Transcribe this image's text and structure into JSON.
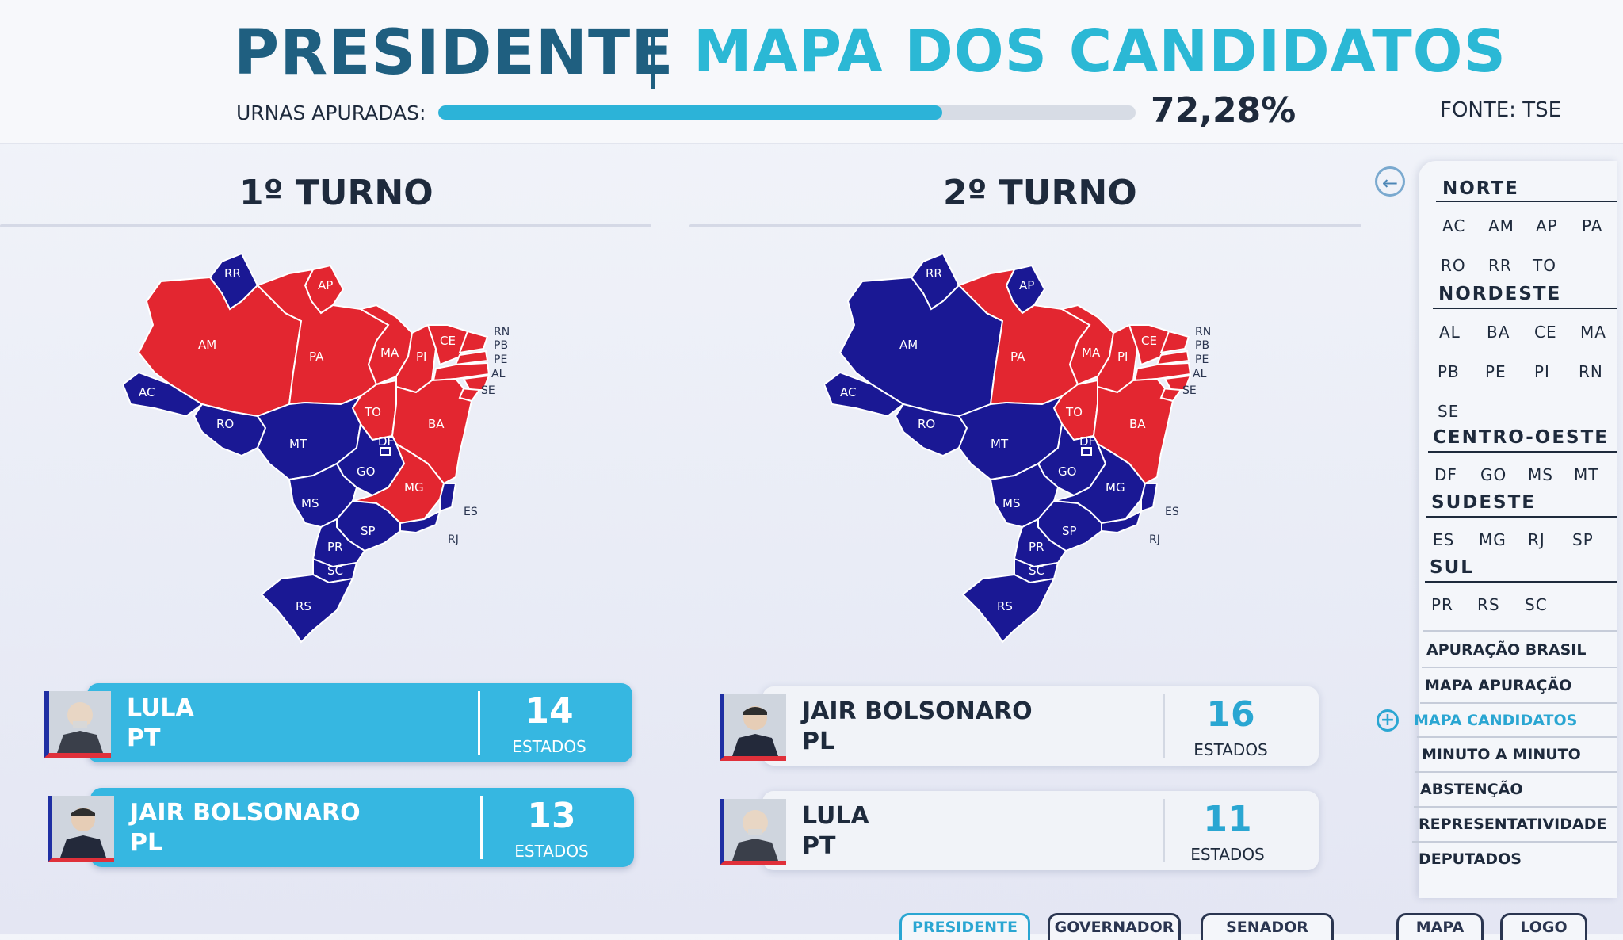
{
  "header": {
    "title": "PRESIDENTE",
    "subtitle": "MAPA DOS CANDIDATOS",
    "urnas_label": "URNAS APURADAS:",
    "urnas_value": "72,28%",
    "urnas_fraction": 0.7228,
    "source": "FONTE: TSE"
  },
  "colors": {
    "lula": "#e32630",
    "bolsonaro": "#1a1894",
    "accent": "#2bb8d5"
  },
  "turno1": {
    "title": "1º TURNO",
    "states": {
      "RR": "bolsonaro",
      "AP": "lula",
      "AM": "lula",
      "PA": "lula",
      "AC": "bolsonaro",
      "RO": "bolsonaro",
      "MA": "lula",
      "CE": "lula",
      "RN": "lula",
      "PB": "lula",
      "PE": "lula",
      "AL": "lula",
      "SE": "lula",
      "PI": "lula",
      "TO": "lula",
      "BA": "lula",
      "MT": "bolsonaro",
      "DF": "bolsonaro",
      "GO": "bolsonaro",
      "MG": "lula",
      "ES": "bolsonaro",
      "RJ": "bolsonaro",
      "MS": "bolsonaro",
      "SP": "bolsonaro",
      "PR": "bolsonaro",
      "SC": "bolsonaro",
      "RS": "bolsonaro"
    },
    "candidates": [
      {
        "name": "LULA",
        "party": "PT",
        "count": "14",
        "count_label": "ESTADOS"
      },
      {
        "name": "JAIR BOLSONARO",
        "party": "PL",
        "count": "13",
        "count_label": "ESTADOS"
      }
    ]
  },
  "turno2": {
    "title": "2º TURNO",
    "states": {
      "RR": "bolsonaro",
      "AP": "bolsonaro",
      "AM": "bolsonaro",
      "PA": "lula",
      "AC": "bolsonaro",
      "RO": "bolsonaro",
      "MA": "lula",
      "CE": "lula",
      "RN": "lula",
      "PB": "lula",
      "PE": "lula",
      "AL": "lula",
      "SE": "lula",
      "PI": "lula",
      "TO": "lula",
      "BA": "lula",
      "MT": "bolsonaro",
      "DF": "bolsonaro",
      "GO": "bolsonaro",
      "MG": "bolsonaro",
      "ES": "bolsonaro",
      "RJ": "bolsonaro",
      "MS": "bolsonaro",
      "SP": "bolsonaro",
      "PR": "bolsonaro",
      "SC": "bolsonaro",
      "RS": "bolsonaro"
    },
    "candidates": [
      {
        "name": "JAIR BOLSONARO",
        "party": "PL",
        "count": "16",
        "count_label": "ESTADOS"
      },
      {
        "name": "LULA",
        "party": "PT",
        "count": "11",
        "count_label": "ESTADOS"
      }
    ]
  },
  "sidebar": {
    "regions": [
      {
        "name": "NORTE",
        "states": [
          "AC",
          "AM",
          "AP",
          "PA",
          "RO",
          "RR",
          "TO"
        ]
      },
      {
        "name": "NORDESTE",
        "states": [
          "AL",
          "BA",
          "CE",
          "MA",
          "PB",
          "PE",
          "PI",
          "RN",
          "SE"
        ]
      },
      {
        "name": "CENTRO-OESTE",
        "states": [
          "DF",
          "GO",
          "MS",
          "MT"
        ]
      },
      {
        "name": "SUDESTE",
        "states": [
          "ES",
          "MG",
          "RJ",
          "SP"
        ]
      },
      {
        "name": "SUL",
        "states": [
          "PR",
          "RS",
          "SC"
        ]
      }
    ],
    "menu": [
      "APURAÇÃO BRASIL",
      "MAPA APURAÇÃO",
      "MAPA CANDIDATOS",
      "MINUTO A MINUTO",
      "ABSTENÇÃO",
      "REPRESENTATIVIDADE",
      "DEPUTADOS"
    ],
    "active_menu": "MAPA CANDIDATOS"
  },
  "tabs": [
    "PRESIDENTE",
    "GOVERNADOR",
    "SENADOR",
    "MAPA",
    "LOGO"
  ],
  "active_tab": "PRESIDENTE"
}
